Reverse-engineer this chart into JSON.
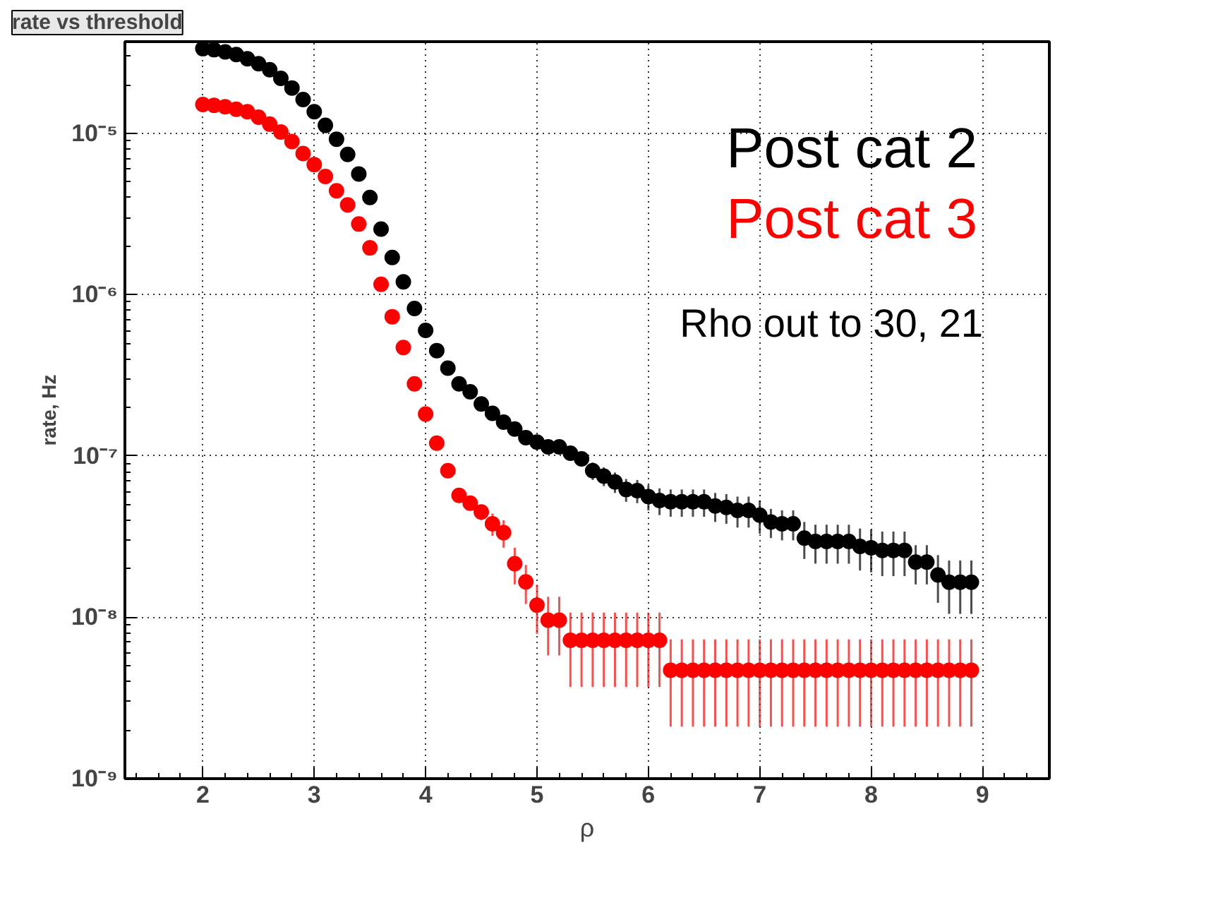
{
  "chart_data": {
    "type": "scatter",
    "title": "rate vs threshold",
    "xlabel": "ρ",
    "ylabel": "rate, Hz",
    "x": [
      2.0,
      2.1,
      2.2,
      2.3,
      2.4,
      2.5,
      2.6,
      2.7,
      2.8,
      2.9,
      3.0,
      3.1,
      3.2,
      3.3,
      3.4,
      3.5,
      3.6,
      3.7,
      3.8,
      3.9,
      4.0,
      4.1,
      4.2,
      4.3,
      4.4,
      4.5,
      4.6,
      4.7,
      4.8,
      4.9,
      5.0,
      5.1,
      5.2,
      5.3,
      5.4,
      5.5,
      5.6,
      5.7,
      5.8,
      5.9,
      6.0,
      6.1,
      6.2,
      6.3,
      6.4,
      6.5,
      6.6,
      6.7,
      6.8,
      6.9,
      7.0,
      7.1,
      7.2,
      7.3,
      7.4,
      7.5,
      7.6,
      7.7,
      7.8,
      7.9,
      8.0,
      8.1,
      8.2,
      8.3,
      8.4,
      8.5,
      8.6,
      8.7,
      8.8,
      8.9
    ],
    "series": [
      {
        "name": "Post cat 2",
        "color": "#000000",
        "values": [
          3.35e-05,
          3.3e-05,
          3.2e-05,
          3.08e-05,
          2.9e-05,
          2.7e-05,
          2.48e-05,
          2.19e-05,
          1.91e-05,
          1.62e-05,
          1.36e-05,
          1.12e-05,
          9.2e-06,
          7.4e-06,
          5.6e-06,
          4e-06,
          2.55e-06,
          1.7e-06,
          1.2e-06,
          8.2e-07,
          6e-07,
          4.5e-07,
          3.5e-07,
          2.8e-07,
          2.5e-07,
          2.1e-07,
          1.84e-07,
          1.62e-07,
          1.47e-07,
          1.3e-07,
          1.22e-07,
          1.14e-07,
          1.14e-07,
          1.04e-07,
          9.6e-08,
          8.1e-08,
          7.5e-08,
          6.9e-08,
          6.2e-08,
          6.1e-08,
          5.6e-08,
          5.3e-08,
          5.2e-08,
          5.2e-08,
          5.2e-08,
          5.2e-08,
          4.9e-08,
          4.8e-08,
          4.6e-08,
          4.6e-08,
          4.3e-08,
          3.9e-08,
          3.8e-08,
          3.8e-08,
          3.1e-08,
          2.95e-08,
          2.95e-08,
          2.95e-08,
          2.95e-08,
          2.75e-08,
          2.7e-08,
          2.6e-08,
          2.6e-08,
          2.6e-08,
          2.2e-08,
          2.2e-08,
          1.83e-08,
          1.65e-08,
          1.65e-08,
          1.65e-08
        ],
        "errors": [
          null,
          null,
          null,
          null,
          null,
          null,
          null,
          null,
          null,
          null,
          null,
          null,
          null,
          null,
          null,
          null,
          null,
          null,
          null,
          null,
          null,
          null,
          null,
          null,
          null,
          null,
          null,
          null,
          1e-08,
          1e-08,
          1e-08,
          1e-08,
          1e-08,
          1e-08,
          1e-08,
          1e-08,
          1e-08,
          1e-08,
          1e-08,
          1e-08,
          1e-08,
          1e-08,
          1e-08,
          1e-08,
          1e-08,
          1e-08,
          1e-08,
          1e-08,
          1e-08,
          1e-08,
          1e-08,
          8e-09,
          8e-09,
          8e-09,
          8e-09,
          8e-09,
          8e-09,
          8e-09,
          8e-09,
          8e-09,
          8e-09,
          8e-09,
          8e-09,
          8e-09,
          6e-09,
          6e-09,
          6e-09,
          6e-09,
          6e-09,
          6e-09
        ]
      },
      {
        "name": "Post cat 3",
        "color": "#ff0000",
        "values": [
          1.51e-05,
          1.49e-05,
          1.46e-05,
          1.41e-05,
          1.36e-05,
          1.26e-05,
          1.14e-05,
          1.02e-05,
          8.9e-06,
          7.5e-06,
          6.4e-06,
          5.4e-06,
          4.4e-06,
          3.6e-06,
          2.74e-06,
          1.95e-06,
          1.16e-06,
          7.3e-07,
          4.7e-07,
          2.8e-07,
          1.82e-07,
          1.2e-07,
          8.1e-08,
          5.7e-08,
          5.1e-08,
          4.5e-08,
          3.8e-08,
          3.35e-08,
          2.15e-08,
          1.66e-08,
          1.19e-08,
          9.6e-09,
          9.6e-09,
          7.2e-09,
          7.2e-09,
          7.2e-09,
          7.2e-09,
          7.2e-09,
          7.2e-09,
          7.2e-09,
          7.2e-09,
          7.2e-09,
          4.7e-09,
          4.7e-09,
          4.7e-09,
          4.7e-09,
          4.7e-09,
          4.7e-09,
          4.7e-09,
          4.7e-09,
          4.7e-09,
          4.7e-09,
          4.7e-09,
          4.7e-09,
          4.7e-09,
          4.7e-09,
          4.7e-09,
          4.7e-09,
          4.7e-09,
          4.7e-09,
          4.7e-09,
          4.7e-09,
          4.7e-09,
          4.7e-09,
          4.7e-09,
          4.7e-09,
          4.7e-09,
          4.7e-09,
          4.7e-09,
          4.7e-09
        ],
        "errors": [
          null,
          null,
          null,
          null,
          null,
          null,
          null,
          null,
          null,
          null,
          null,
          null,
          null,
          null,
          null,
          null,
          null,
          null,
          null,
          null,
          null,
          8e-09,
          8e-09,
          5e-09,
          5e-09,
          5e-09,
          6e-09,
          6.5e-09,
          5.5e-09,
          4.5e-09,
          4e-09,
          3.8e-09,
          3.8e-09,
          3.5e-09,
          3.5e-09,
          3.5e-09,
          3.5e-09,
          3.5e-09,
          3.5e-09,
          3.5e-09,
          3.5e-09,
          3.5e-09,
          2.6e-09,
          2.6e-09,
          2.6e-09,
          2.6e-09,
          2.6e-09,
          2.6e-09,
          2.6e-09,
          2.6e-09,
          2.6e-09,
          2.6e-09,
          2.6e-09,
          2.6e-09,
          2.6e-09,
          2.6e-09,
          2.6e-09,
          2.6e-09,
          2.6e-09,
          2.6e-09,
          2.6e-09,
          2.6e-09,
          2.6e-09,
          2.6e-09,
          2.6e-09,
          2.6e-09,
          2.6e-09,
          2.6e-09,
          2.6e-09,
          2.6e-09
        ]
      }
    ],
    "xlim": [
      1.3,
      9.6
    ],
    "xticks": [
      2,
      3,
      4,
      5,
      6,
      7,
      8,
      9
    ],
    "ylim": [
      1e-09,
      3.7e-05
    ],
    "yticks": [
      {
        "value": 1e-09,
        "label": "10⁻⁹"
      },
      {
        "value": 1e-08,
        "label": "10⁻⁸"
      },
      {
        "value": 1e-07,
        "label": "10⁻⁷"
      },
      {
        "value": 1e-06,
        "label": "10⁻⁶"
      },
      {
        "value": 1e-05,
        "label": "10⁻⁵"
      }
    ],
    "log": "y",
    "grid": true,
    "legend": "top right",
    "marker": "circle",
    "annotations": [
      "Rho out to 30, 21"
    ]
  }
}
